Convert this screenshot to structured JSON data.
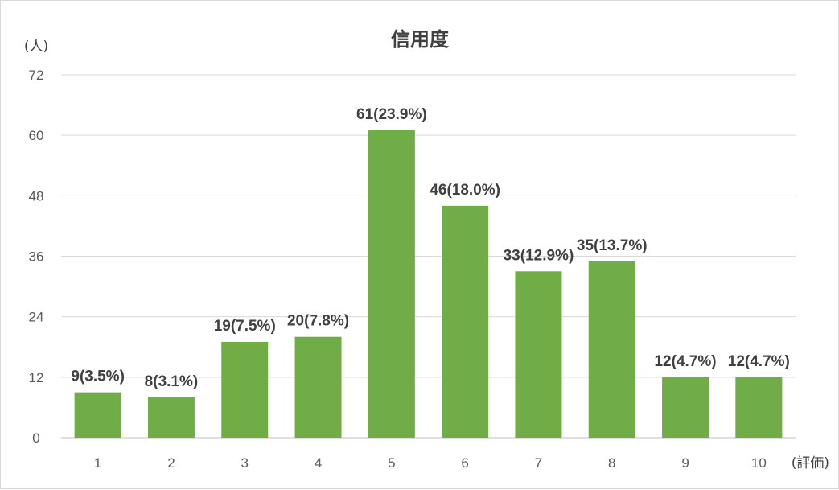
{
  "chart_data": {
    "type": "bar",
    "title": "信用度",
    "ylabel": "(人)",
    "xlabel": "(評価)",
    "categories": [
      "1",
      "2",
      "3",
      "4",
      "5",
      "6",
      "7",
      "8",
      "9",
      "10"
    ],
    "values": [
      9,
      8,
      19,
      20,
      61,
      46,
      33,
      35,
      12,
      12
    ],
    "data_labels": [
      "9(3.5%)",
      "8(3.1%)",
      "19(7.5%)",
      "20(7.8%)",
      "61(23.9%)",
      "46(18.0%)",
      "33(12.9%)",
      "35(13.7%)",
      "12(4.7%)",
      "12(4.7%)"
    ],
    "yticks": [
      0,
      12,
      24,
      36,
      48,
      60,
      72
    ],
    "ylim": [
      0,
      72
    ],
    "grid": true,
    "bar_color": "#70ad47"
  }
}
